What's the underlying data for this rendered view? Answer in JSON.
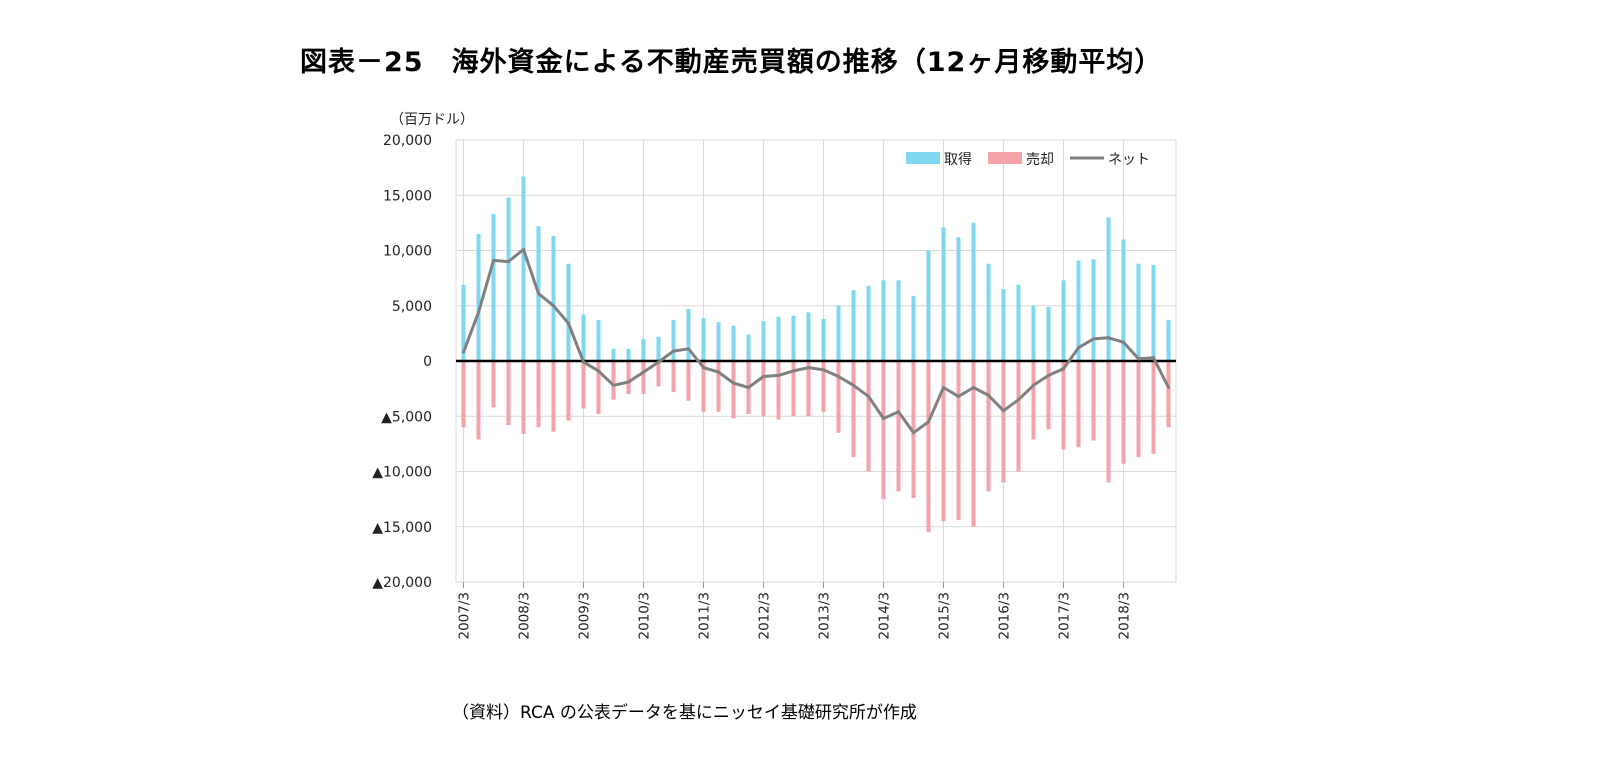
{
  "title": "図表－25　海外資金による不動産売買額の推移（12ヶ月移動平均）",
  "source": "（資料）RCA の公表データを基にニッセイ基礎研究所が作成",
  "chart_data": {
    "type": "bar",
    "unit_label": "（百万ドル）",
    "ylim": [
      -20000,
      20000
    ],
    "y_ticks": [
      20000,
      15000,
      10000,
      5000,
      0,
      -5000,
      -10000,
      -15000,
      -20000
    ],
    "y_tick_labels": [
      "20,000",
      "15,000",
      "10,000",
      "5,000",
      "0",
      "▲5,000",
      "▲10,000",
      "▲15,000",
      "▲20,000"
    ],
    "x_tick_labels": [
      "2007/3",
      "2008/3",
      "2009/3",
      "2010/3",
      "2011/3",
      "2012/3",
      "2013/3",
      "2014/3",
      "2015/3",
      "2016/3",
      "2017/3",
      "2018/3"
    ],
    "periods_per_year": 4,
    "legend": [
      "取得",
      "売却",
      "ネット"
    ],
    "colors": {
      "acquisition": "#80d8f0",
      "sale": "#f4a3a8",
      "net": "#808080",
      "zero_line": "#000000",
      "grid": "#d9d9d9"
    },
    "series": [
      {
        "name": "取得",
        "values": [
          6900,
          11500,
          13300,
          14800,
          16700,
          12200,
          11300,
          8800,
          4200,
          3700,
          1100,
          1100,
          2000,
          2200,
          3700,
          4700,
          3900,
          3500,
          3200,
          2400,
          3600,
          4000,
          4100,
          4400,
          3800,
          5000,
          6400,
          6800,
          7300,
          7300,
          5900,
          10000,
          12100,
          11200,
          12500,
          8800,
          6500,
          6900,
          5000,
          4900,
          7300,
          9100,
          9200,
          13000,
          11000,
          8800,
          8700,
          3700
        ]
      },
      {
        "name": "売却",
        "values": [
          -6000,
          -7100,
          -4200,
          -5800,
          -6600,
          -6000,
          -6400,
          -5400,
          -4300,
          -4800,
          -3500,
          -3000,
          -3000,
          -2300,
          -2800,
          -3600,
          -4600,
          -4600,
          -5200,
          -4800,
          -5000,
          -5300,
          -5000,
          -5000,
          -4600,
          -6500,
          -8700,
          -10000,
          -12500,
          -11800,
          -12400,
          -15500,
          -14500,
          -14400,
          -15000,
          -11800,
          -11000,
          -10000,
          -7100,
          -6200,
          -8000,
          -7800,
          -7200,
          -11000,
          -9300,
          -8700,
          -8400,
          -6000
        ]
      },
      {
        "name": "ネット",
        "values": [
          800,
          4400,
          9100,
          9000,
          10100,
          6100,
          5000,
          3400,
          -100,
          -900,
          -2200,
          -1900,
          -1000,
          -100,
          900,
          1100,
          -600,
          -1000,
          -2000,
          -2400,
          -1400,
          -1300,
          -900,
          -600,
          -800,
          -1400,
          -2200,
          -3200,
          -5200,
          -4600,
          -6500,
          -5500,
          -2400,
          -3200,
          -2400,
          -3100,
          -4500,
          -3500,
          -2200,
          -1300,
          -700,
          1200,
          2000,
          2100,
          1700,
          200,
          300,
          -2400
        ]
      }
    ]
  }
}
